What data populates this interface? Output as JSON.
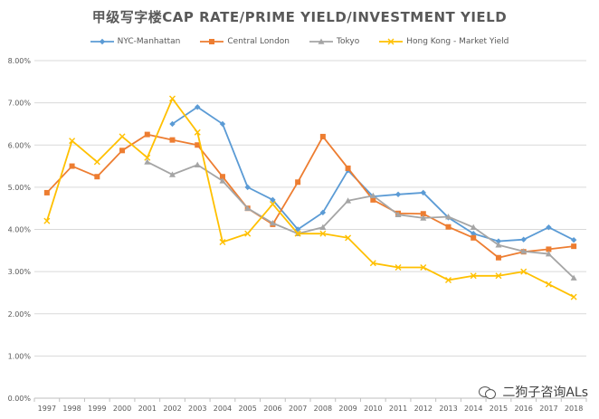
{
  "chart_data": {
    "type": "line",
    "title": "甲级写字楼CAP RATE/PRIME YIELD/INVESTMENT YIELD",
    "xlabel": "",
    "ylabel": "",
    "ylim": [
      0,
      8
    ],
    "yticks": [
      "0.00%",
      "1.00%",
      "2.00%",
      "3.00%",
      "4.00%",
      "5.00%",
      "6.00%",
      "7.00%",
      "8.00%"
    ],
    "categories": [
      "1997",
      "1998",
      "1999",
      "2000",
      "2001",
      "2002",
      "2003",
      "2004",
      "2005",
      "2006",
      "2007",
      "2008",
      "2009",
      "2010",
      "2011",
      "2012",
      "2013",
      "2014",
      "2015",
      "2016",
      "2017",
      "2018"
    ],
    "legend_position": "top",
    "series": [
      {
        "name": "NYC-Manhattan",
        "color": "#5B9BD5",
        "marker": "diamond",
        "values": [
          null,
          null,
          null,
          null,
          null,
          6.5,
          6.9,
          6.5,
          5.0,
          4.7,
          4.0,
          4.4,
          5.4,
          4.78,
          4.83,
          4.87,
          4.28,
          3.9,
          3.72,
          3.76,
          4.05,
          3.75
        ]
      },
      {
        "name": "Central London",
        "color": "#ED7D31",
        "marker": "square",
        "values": [
          4.87,
          5.5,
          5.25,
          5.87,
          6.25,
          6.12,
          6.0,
          5.25,
          4.5,
          4.12,
          5.12,
          6.2,
          5.45,
          4.7,
          4.38,
          4.37,
          4.06,
          3.8,
          3.33,
          3.47,
          3.53,
          3.6
        ]
      },
      {
        "name": "Tokyo",
        "color": "#A5A5A5",
        "marker": "triangle",
        "values": [
          null,
          null,
          null,
          null,
          5.6,
          5.3,
          5.53,
          5.15,
          4.5,
          4.15,
          3.9,
          4.05,
          4.68,
          4.8,
          4.35,
          4.27,
          4.3,
          4.05,
          3.63,
          3.48,
          3.42,
          2.85
        ]
      },
      {
        "name": "Hong Kong - Market Yield",
        "color": "#FFC000",
        "marker": "x",
        "values": [
          4.2,
          6.1,
          5.6,
          6.2,
          5.7,
          7.1,
          6.3,
          3.7,
          3.9,
          4.6,
          3.9,
          3.9,
          3.8,
          3.2,
          3.1,
          3.1,
          2.8,
          2.9,
          2.9,
          3.0,
          2.7,
          2.4
        ]
      }
    ]
  },
  "watermark": {
    "text": "二狗子咨询ALs",
    "icon": "wechat-icon"
  }
}
